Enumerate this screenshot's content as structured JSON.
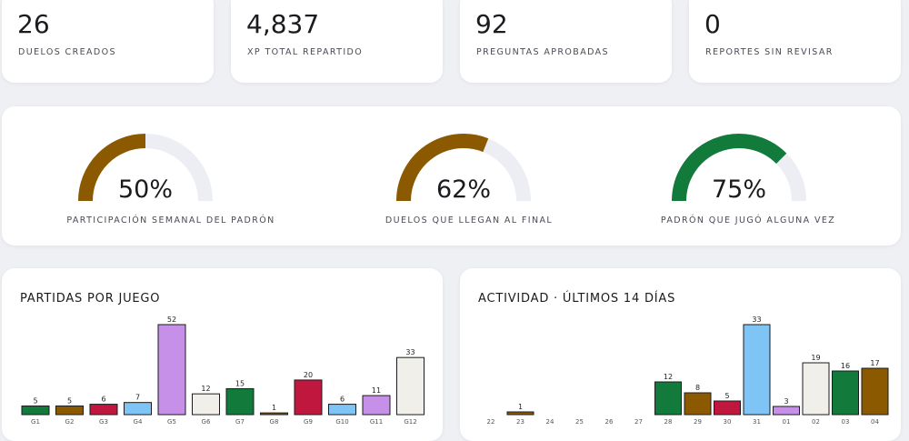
{
  "stats": [
    {
      "value": "26",
      "label": "DUELOS CREADOS"
    },
    {
      "value": "4,837",
      "label": "XP TOTAL REPARTIDO"
    },
    {
      "value": "92",
      "label": "PREGUNTAS APROBADAS"
    },
    {
      "value": "0",
      "label": "REPORTES SIN REVISAR"
    }
  ],
  "gauges": [
    {
      "text": "50%",
      "value": 50,
      "color": "#8b5a00",
      "label": "PARTICIPACIÓN SEMANAL DEL PADRÓN"
    },
    {
      "text": "62%",
      "value": 62,
      "color": "#8b5a00",
      "label": "DUELOS QUE LLEGAN AL FINAL"
    },
    {
      "text": "75%",
      "value": 75,
      "color": "#127a3a",
      "label": "PADRÓN QUE JUGÓ ALGUNA VEZ"
    }
  ],
  "chart_data": [
    {
      "type": "bar",
      "title": "PARTIDAS POR JUEGO",
      "categories": [
        "G1",
        "G2",
        "G3",
        "G4",
        "G5",
        "G6",
        "G7",
        "G8",
        "G9",
        "G10",
        "G11",
        "G12"
      ],
      "values": [
        5,
        5,
        6,
        7,
        52,
        12,
        15,
        1,
        20,
        6,
        11,
        33
      ],
      "colors": [
        "#127a3a",
        "#8b5a00",
        "#c0173f",
        "#7ec4f5",
        "#c690e8",
        "#f1efea",
        "#127a3a",
        "#8b5a00",
        "#c0173f",
        "#7ec4f5",
        "#c690e8",
        "#f1efea"
      ],
      "ylim": [
        0,
        52
      ]
    },
    {
      "type": "bar",
      "title": "ACTIVIDAD · ÚLTIMOS 14 DÍAS",
      "categories": [
        "22",
        "23",
        "24",
        "25",
        "26",
        "27",
        "28",
        "29",
        "30",
        "31",
        "01",
        "02",
        "03",
        "04"
      ],
      "values": [
        0,
        1,
        0,
        0,
        0,
        0,
        12,
        8,
        5,
        33,
        3,
        19,
        16,
        17
      ],
      "colors": [
        "#8b5a00",
        "#8b5a00",
        "#8b5a00",
        "#8b5a00",
        "#8b5a00",
        "#8b5a00",
        "#127a3a",
        "#8b5a00",
        "#c0173f",
        "#7ec4f5",
        "#c690e8",
        "#f1efea",
        "#127a3a",
        "#8b5a00"
      ],
      "ylim": [
        0,
        33
      ]
    }
  ]
}
